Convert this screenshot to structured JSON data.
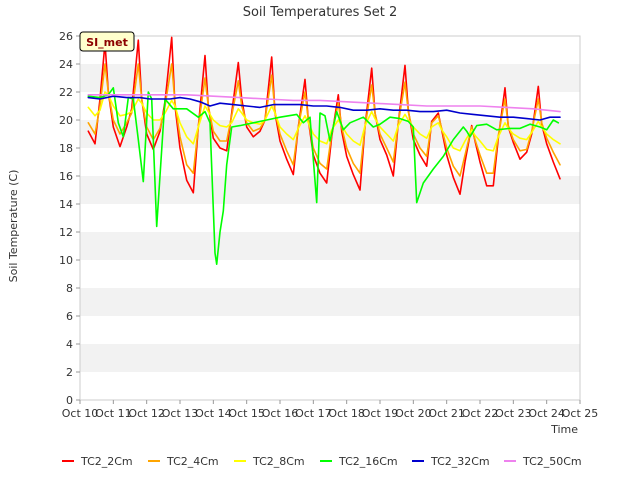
{
  "chart_data": {
    "type": "line",
    "title": "Soil Temperatures Set 2",
    "xlabel": "Time",
    "ylabel": "Soil Temperature (C)",
    "annotation": "SI_met",
    "xlim": [
      10,
      25
    ],
    "ylim": [
      0,
      26
    ],
    "x_ticks": [
      10,
      11,
      12,
      13,
      14,
      15,
      16,
      17,
      18,
      19,
      20,
      21,
      22,
      23,
      24,
      25
    ],
    "x_tick_labels": [
      "Oct 10",
      "Oct 11",
      "Oct 12",
      "Oct 13",
      "Oct 14",
      "Oct 15",
      "Oct 16",
      "Oct 17",
      "Oct 18",
      "Oct 19",
      "Oct 20",
      "Oct 21",
      "Oct 22",
      "Oct 23",
      "Oct 24",
      "Oct 25"
    ],
    "y_ticks": [
      0,
      2,
      4,
      6,
      8,
      10,
      12,
      14,
      16,
      18,
      20,
      22,
      24,
      26
    ],
    "grid": "horizontal bands",
    "legend_position": "bottom",
    "series": [
      {
        "name": "TC2_2Cm",
        "color": "#ff0000",
        "x": [
          10.25,
          10.45,
          10.6,
          10.75,
          10.85,
          11.0,
          11.2,
          11.4,
          11.55,
          11.75,
          11.85,
          12.0,
          12.2,
          12.4,
          12.55,
          12.75,
          12.85,
          13.0,
          13.2,
          13.4,
          13.55,
          13.75,
          13.85,
          14.0,
          14.2,
          14.4,
          14.55,
          14.75,
          14.85,
          15.0,
          15.2,
          15.4,
          15.55,
          15.75,
          15.85,
          16.0,
          16.2,
          16.4,
          16.55,
          16.75,
          16.85,
          17.0,
          17.2,
          17.4,
          17.55,
          17.75,
          17.85,
          18.0,
          18.2,
          18.4,
          18.55,
          18.75,
          18.85,
          19.0,
          19.2,
          19.4,
          19.55,
          19.75,
          19.85,
          20.0,
          20.2,
          20.4,
          20.55,
          20.75,
          20.85,
          21.0,
          21.2,
          21.4,
          21.55,
          21.75,
          21.85,
          22.0,
          22.2,
          22.4,
          22.55,
          22.75,
          22.85,
          23.0,
          23.2,
          23.4,
          23.55,
          23.75,
          23.85,
          24.0,
          24.2,
          24.4
        ],
        "y": [
          19.2,
          18.3,
          21.5,
          25.5,
          22.0,
          19.5,
          18.1,
          19.5,
          20.8,
          25.7,
          21.5,
          19.0,
          17.9,
          19.2,
          21.3,
          25.9,
          21.0,
          18.0,
          15.7,
          14.8,
          19.5,
          24.6,
          21.0,
          18.7,
          18.0,
          17.8,
          20.5,
          24.1,
          21.5,
          19.5,
          18.8,
          19.2,
          20.0,
          24.5,
          20.5,
          18.5,
          17.2,
          16.1,
          19.5,
          22.9,
          20.0,
          17.5,
          16.2,
          15.5,
          18.8,
          21.8,
          19.2,
          17.4,
          16.1,
          15.0,
          19.5,
          23.7,
          20.5,
          18.6,
          17.5,
          16.0,
          19.8,
          23.9,
          20.7,
          18.6,
          17.5,
          16.7,
          19.9,
          20.5,
          19.3,
          17.5,
          15.9,
          14.7,
          17.0,
          19.6,
          18.5,
          17.0,
          15.3,
          15.3,
          18.7,
          22.3,
          19.5,
          18.4,
          17.2,
          17.7,
          19.0,
          22.4,
          19.7,
          18.3,
          17.0,
          15.8
        ]
      },
      {
        "name": "TC2_4Cm",
        "color": "#ffa500",
        "x": [
          10.25,
          10.45,
          10.6,
          10.75,
          10.85,
          11.0,
          11.2,
          11.4,
          11.55,
          11.75,
          11.85,
          12.0,
          12.2,
          12.4,
          12.55,
          12.75,
          12.85,
          13.0,
          13.2,
          13.4,
          13.55,
          13.75,
          13.85,
          14.0,
          14.2,
          14.4,
          14.55,
          14.75,
          14.85,
          15.0,
          15.2,
          15.4,
          15.55,
          15.75,
          15.85,
          16.0,
          16.2,
          16.4,
          16.55,
          16.75,
          16.85,
          17.0,
          17.2,
          17.4,
          17.55,
          17.75,
          17.85,
          18.0,
          18.2,
          18.4,
          18.55,
          18.75,
          18.85,
          19.0,
          19.2,
          19.4,
          19.55,
          19.75,
          19.85,
          20.0,
          20.2,
          20.4,
          20.55,
          20.75,
          20.85,
          21.0,
          21.2,
          21.4,
          21.55,
          21.75,
          21.85,
          22.0,
          22.2,
          22.4,
          22.55,
          22.75,
          22.85,
          23.0,
          23.2,
          23.4,
          23.55,
          23.75,
          23.85,
          24.0,
          24.2,
          24.4
        ],
        "y": [
          19.8,
          19.0,
          21.0,
          24.0,
          22.0,
          20.0,
          19.0,
          19.8,
          20.5,
          24.0,
          21.5,
          19.5,
          18.6,
          19.4,
          21.0,
          24.0,
          21.2,
          18.8,
          16.8,
          16.2,
          19.5,
          23.0,
          21.0,
          19.2,
          18.5,
          18.5,
          20.3,
          22.8,
          21.0,
          19.8,
          19.2,
          19.4,
          20.0,
          23.2,
          20.6,
          19.0,
          17.8,
          16.8,
          19.5,
          22.0,
          20.0,
          18.0,
          16.9,
          16.5,
          19.0,
          21.2,
          19.5,
          18.0,
          16.9,
          16.2,
          19.5,
          22.5,
          20.5,
          19.0,
          18.0,
          17.0,
          19.8,
          22.7,
          20.6,
          19.0,
          18.0,
          17.4,
          19.8,
          20.3,
          19.4,
          18.0,
          16.7,
          16.0,
          17.5,
          19.5,
          18.6,
          17.5,
          16.2,
          16.2,
          18.9,
          21.5,
          19.6,
          18.6,
          17.8,
          17.9,
          19.2,
          21.5,
          19.8,
          18.7,
          17.7,
          16.8
        ]
      },
      {
        "name": "TC2_8Cm",
        "color": "#ffff00",
        "x": [
          10.25,
          10.45,
          10.6,
          10.75,
          10.85,
          11.0,
          11.2,
          11.4,
          11.55,
          11.75,
          11.85,
          12.0,
          12.2,
          12.4,
          12.55,
          12.75,
          12.85,
          13.0,
          13.2,
          13.4,
          13.55,
          13.75,
          13.85,
          14.0,
          14.2,
          14.4,
          14.55,
          14.75,
          14.85,
          15.0,
          15.2,
          15.4,
          15.55,
          15.75,
          15.85,
          16.0,
          16.2,
          16.4,
          16.55,
          16.75,
          16.85,
          17.0,
          17.2,
          17.4,
          17.55,
          17.75,
          17.85,
          18.0,
          18.2,
          18.4,
          18.55,
          18.75,
          18.85,
          19.0,
          19.2,
          19.4,
          19.55,
          19.75,
          19.85,
          20.0,
          20.2,
          20.4,
          20.55,
          20.75,
          20.85,
          21.0,
          21.2,
          21.4,
          21.55,
          21.75,
          21.85,
          22.0,
          22.2,
          22.4,
          22.55,
          22.75,
          22.85,
          23.0,
          23.2,
          23.4,
          23.55,
          23.75,
          23.85,
          24.0,
          24.2,
          24.4
        ],
        "y": [
          20.9,
          20.3,
          20.7,
          22.0,
          21.8,
          21.0,
          20.3,
          20.4,
          20.6,
          21.5,
          21.2,
          20.5,
          20.0,
          20.0,
          20.5,
          21.4,
          21.0,
          19.8,
          18.8,
          18.3,
          19.5,
          21.0,
          20.6,
          20.0,
          19.6,
          19.5,
          19.8,
          20.8,
          20.5,
          20.0,
          19.8,
          19.7,
          20.0,
          21.0,
          20.5,
          19.5,
          19.0,
          18.6,
          19.4,
          20.3,
          19.8,
          19.0,
          18.5,
          18.3,
          19.3,
          20.0,
          19.6,
          19.0,
          18.5,
          18.2,
          19.6,
          20.6,
          20.1,
          19.5,
          19.0,
          18.5,
          19.6,
          20.4,
          20.0,
          19.5,
          19.0,
          18.7,
          19.5,
          19.8,
          19.3,
          18.8,
          18.0,
          17.8,
          18.5,
          19.3,
          18.9,
          18.5,
          17.9,
          17.8,
          18.8,
          19.8,
          19.4,
          19.0,
          18.7,
          18.6,
          19.1,
          19.9,
          19.5,
          19.0,
          18.6,
          18.3
        ]
      },
      {
        "name": "TC2_16Cm",
        "color": "#00ff00",
        "x": [
          10.25,
          10.6,
          10.85,
          11.0,
          11.15,
          11.3,
          11.45,
          11.6,
          11.75,
          11.9,
          12.05,
          12.15,
          12.3,
          12.55,
          12.8,
          13.2,
          13.55,
          13.75,
          13.9,
          14.05,
          14.1,
          14.2,
          14.3,
          14.4,
          14.55,
          14.8,
          15.2,
          15.6,
          16.0,
          16.5,
          16.7,
          16.9,
          17.1,
          17.2,
          17.35,
          17.5,
          17.7,
          17.9,
          18.1,
          18.5,
          18.8,
          19.0,
          19.3,
          19.6,
          19.85,
          20.0,
          20.1,
          20.3,
          20.6,
          20.9,
          21.2,
          21.5,
          21.6,
          21.7,
          21.9,
          22.2,
          22.5,
          22.9,
          23.2,
          23.5,
          23.8,
          24.0,
          24.2,
          24.35
        ],
        "y": [
          21.7,
          21.6,
          21.8,
          22.3,
          19.8,
          18.8,
          21.6,
          21.5,
          18.6,
          15.6,
          22.0,
          21.5,
          12.4,
          21.5,
          20.8,
          20.8,
          20.2,
          20.6,
          19.8,
          10.5,
          9.7,
          12.0,
          13.5,
          16.8,
          19.5,
          19.6,
          19.8,
          20.0,
          20.2,
          20.4,
          19.8,
          20.2,
          14.1,
          20.5,
          20.3,
          18.5,
          20.6,
          19.3,
          19.8,
          20.2,
          19.5,
          19.7,
          20.2,
          20.1,
          19.9,
          19.5,
          14.1,
          15.5,
          16.5,
          17.4,
          18.6,
          19.5,
          19.2,
          18.8,
          19.6,
          19.7,
          19.3,
          19.4,
          19.4,
          19.7,
          19.5,
          19.3,
          20.0,
          19.8
        ]
      },
      {
        "name": "TC2_32Cm",
        "color": "#0000cd",
        "x": [
          10.25,
          10.6,
          11.0,
          11.4,
          11.8,
          12.1,
          12.4,
          12.7,
          13.0,
          13.3,
          13.6,
          13.9,
          14.2,
          14.6,
          15.0,
          15.4,
          15.8,
          16.2,
          16.6,
          17.0,
          17.4,
          17.8,
          18.2,
          18.6,
          19.0,
          19.4,
          19.8,
          20.2,
          20.6,
          21.0,
          21.4,
          21.8,
          22.2,
          22.6,
          23.0,
          23.4,
          23.8,
          24.1,
          24.4
        ],
        "y": [
          21.6,
          21.5,
          21.7,
          21.6,
          21.6,
          21.5,
          21.5,
          21.5,
          21.6,
          21.5,
          21.3,
          21.0,
          21.2,
          21.1,
          21.0,
          20.9,
          21.1,
          21.1,
          21.1,
          21.0,
          21.0,
          20.9,
          20.7,
          20.7,
          20.8,
          20.7,
          20.7,
          20.6,
          20.6,
          20.7,
          20.5,
          20.4,
          20.3,
          20.2,
          20.2,
          20.1,
          20.0,
          20.2,
          20.2
        ]
      },
      {
        "name": "TC2_50Cm",
        "color": "#ee82ee",
        "x": [
          10.25,
          11.0,
          11.8,
          12.5,
          13.2,
          14.0,
          14.8,
          15.6,
          16.4,
          17.2,
          18.0,
          18.8,
          19.6,
          20.4,
          21.2,
          22.0,
          22.8,
          23.6,
          24.4
        ],
        "y": [
          21.8,
          21.8,
          21.8,
          21.8,
          21.8,
          21.7,
          21.6,
          21.5,
          21.4,
          21.4,
          21.3,
          21.2,
          21.1,
          21.0,
          21.0,
          21.0,
          20.9,
          20.8,
          20.6
        ]
      }
    ]
  }
}
